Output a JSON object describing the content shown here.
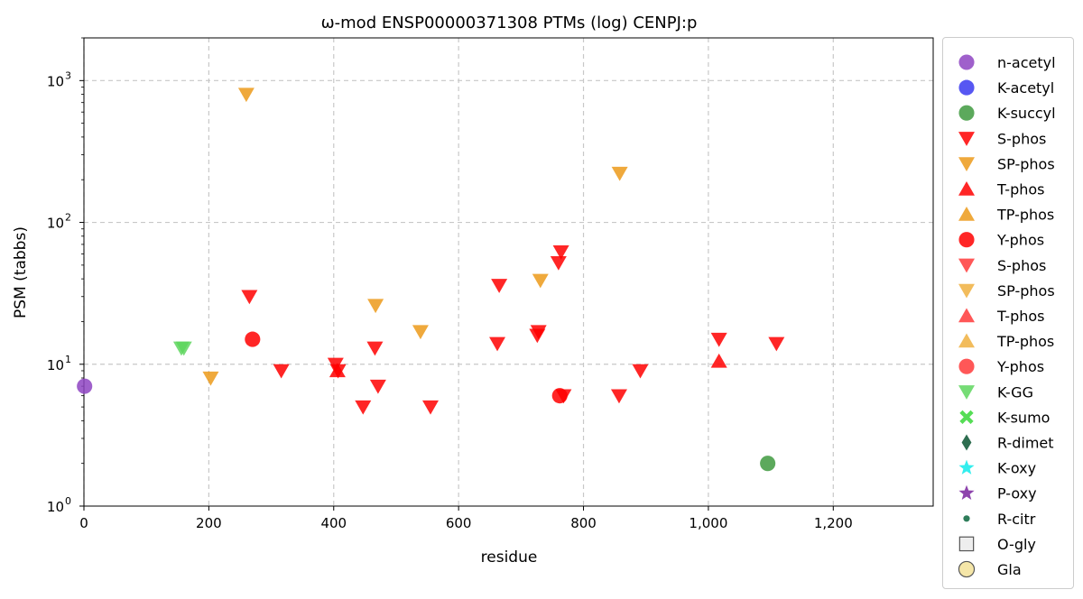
{
  "chart_data": {
    "type": "scatter",
    "title": "ω-mod ENSP00000371308 PTMs (log) CENPJ:p",
    "xlabel": "residue",
    "ylabel": "PSM (tabbs)",
    "xlim": [
      0,
      1360
    ],
    "ylim": [
      1,
      2000
    ],
    "yscale": "log",
    "grid": true,
    "legend_position": "outside-right",
    "x_ticks": [
      0,
      200,
      400,
      600,
      800,
      1000,
      1200
    ],
    "x_tick_labels": [
      "0",
      "200",
      "400",
      "600",
      "800",
      "1,000",
      "1,200"
    ],
    "y_ticks": [
      1,
      10,
      100,
      1000
    ],
    "y_tick_labels": [
      "10",
      "10",
      "10",
      "10"
    ],
    "y_tick_exponents": [
      "0",
      "1",
      "2",
      "3"
    ],
    "series": [
      {
        "name": "n-acetyl",
        "marker": "circle",
        "color": "#8e44c2",
        "x": [
          1
        ],
        "y": [
          7
        ]
      },
      {
        "name": "K-acetyl",
        "marker": "circle",
        "color": "#3a3af0",
        "x": [],
        "y": []
      },
      {
        "name": "K-succyl",
        "marker": "circle",
        "color": "#3f9a3f",
        "x": [
          1095
        ],
        "y": [
          2
        ]
      },
      {
        "name": "S-phos",
        "marker": "triangle-down",
        "color": "#ff0000",
        "x": [
          265,
          316,
          403,
          407,
          447,
          466,
          471,
          555,
          662,
          665,
          726,
          728,
          760,
          764,
          768,
          857,
          891,
          1017,
          1109
        ],
        "y": [
          30,
          9,
          10,
          9,
          5,
          13,
          7,
          5,
          14,
          36,
          16,
          17,
          52,
          62,
          6,
          6,
          9,
          15,
          14
        ]
      },
      {
        "name": "SP-phos",
        "marker": "triangle-down",
        "color": "#ec9a1a",
        "x": [
          203,
          260,
          467,
          539,
          731,
          858
        ],
        "y": [
          8,
          800,
          26,
          17,
          39,
          222
        ]
      },
      {
        "name": "T-phos",
        "marker": "triangle-up",
        "color": "#ff0000",
        "x": [
          406,
          1017
        ],
        "y": [
          9,
          10.5
        ]
      },
      {
        "name": "TP-phos",
        "marker": "triangle-up",
        "color": "#ec9a1a",
        "x": [],
        "y": []
      },
      {
        "name": "Y-phos",
        "marker": "circle",
        "color": "#ff0000",
        "x": [
          270,
          762
        ],
        "y": [
          15,
          6
        ]
      },
      {
        "name": "S-phos",
        "marker": "triangle-down",
        "color": "#ff3a3a",
        "x": [],
        "y": []
      },
      {
        "name": "SP-phos",
        "marker": "triangle-down",
        "color": "#f0b040",
        "x": [],
        "y": []
      },
      {
        "name": "T-phos",
        "marker": "triangle-up",
        "color": "#ff3a3a",
        "x": [],
        "y": []
      },
      {
        "name": "TP-phos",
        "marker": "triangle-up",
        "color": "#f0b040",
        "x": [],
        "y": []
      },
      {
        "name": "Y-phos",
        "marker": "circle",
        "color": "#ff3a3a",
        "x": [],
        "y": []
      },
      {
        "name": "K-GG",
        "marker": "triangle-down",
        "color": "#5ed65e",
        "x": [
          156,
          160
        ],
        "y": [
          13,
          13
        ]
      },
      {
        "name": "K-sumo",
        "marker": "x",
        "color": "#55dd55",
        "x": [],
        "y": []
      },
      {
        "name": "R-dimet",
        "marker": "diamond",
        "color": "#2e6e50",
        "x": [],
        "y": []
      },
      {
        "name": "K-oxy",
        "marker": "star",
        "color": "#33eeee",
        "x": [],
        "y": []
      },
      {
        "name": "P-oxy",
        "marker": "star",
        "color": "#8e44ad",
        "x": [],
        "y": []
      },
      {
        "name": "R-citr",
        "marker": "dot",
        "color": "#2e7d5a",
        "x": [],
        "y": []
      },
      {
        "name": "O-gly",
        "marker": "square",
        "color": "#eeeeee",
        "x": [],
        "y": []
      },
      {
        "name": "Gla",
        "marker": "circle-outline",
        "color": "#f5e6a8",
        "x": [],
        "y": []
      }
    ]
  }
}
